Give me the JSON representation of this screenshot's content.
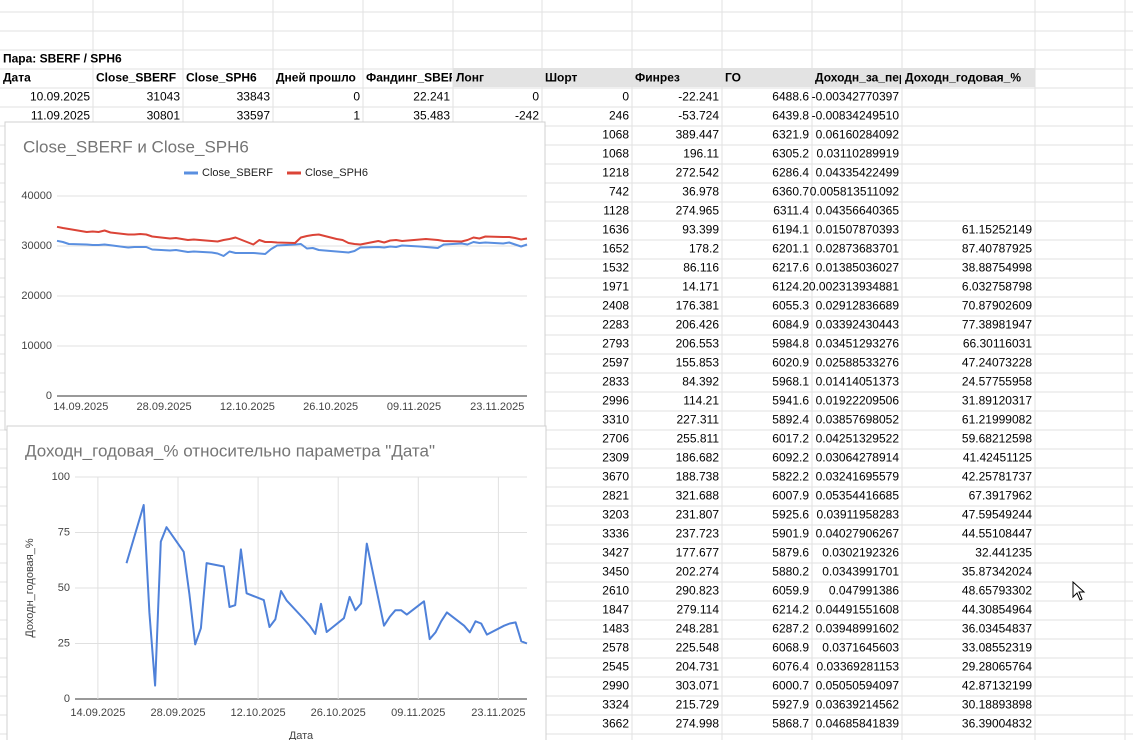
{
  "sheet": {
    "title": "Пара: SBERF / SPH6",
    "headers": [
      "Дата",
      "Close_SBERF",
      "Close_SPH6",
      "Дней прошло",
      "Фандинг_SBERF",
      "Лонг",
      "Шорт",
      "Финрез",
      "ГО",
      "Доходн_за_период",
      "Доходн_годовая_%"
    ],
    "rows": [
      [
        "10.09.2025",
        "31043",
        "33843",
        "0",
        "22.241",
        "0",
        "0",
        "-22.241",
        "6488.6",
        "-0.00342770397",
        null
      ],
      [
        "11.09.2025",
        "30801",
        "33597",
        "1",
        "35.483",
        "-242",
        "246",
        "-53.724",
        "6439.8",
        "-0.00834249510",
        null
      ],
      [
        null,
        null,
        null,
        null,
        null,
        null,
        "1068",
        "389.447",
        "6321.9",
        "0.06160284092",
        null
      ],
      [
        null,
        null,
        null,
        null,
        null,
        null,
        "1068",
        "196.11",
        "6305.2",
        "0.03110289919",
        null
      ],
      [
        null,
        null,
        null,
        null,
        null,
        null,
        "1218",
        "272.542",
        "6286.4",
        "0.04335422499",
        null
      ],
      [
        null,
        null,
        null,
        null,
        null,
        null,
        "742",
        "36.978",
        "6360.7",
        "0.005813511092",
        null
      ],
      [
        null,
        null,
        null,
        null,
        null,
        null,
        "1128",
        "274.965",
        "6311.4",
        "0.04356640365",
        null
      ],
      [
        null,
        null,
        null,
        null,
        null,
        null,
        "1636",
        "93.399",
        "6194.1",
        "0.01507870393",
        "61.15252149"
      ],
      [
        null,
        null,
        null,
        null,
        null,
        null,
        "1652",
        "178.2",
        "6201.1",
        "0.02873683701",
        "87.40787925"
      ],
      [
        null,
        null,
        null,
        null,
        null,
        null,
        "1532",
        "86.116",
        "6217.6",
        "0.01385036027",
        "38.88754998"
      ],
      [
        null,
        null,
        null,
        null,
        null,
        null,
        "1971",
        "14.171",
        "6124.2",
        "0.002313934881",
        "6.032758798"
      ],
      [
        null,
        null,
        null,
        null,
        null,
        null,
        "2408",
        "176.381",
        "6055.3",
        "0.02912836689",
        "70.87902609"
      ],
      [
        null,
        null,
        null,
        null,
        null,
        null,
        "2283",
        "206.426",
        "6084.9",
        "0.03392430443",
        "77.38981947"
      ],
      [
        null,
        null,
        null,
        null,
        null,
        null,
        "2793",
        "206.553",
        "5984.8",
        "0.03451293276",
        "66.30116031"
      ],
      [
        null,
        null,
        null,
        null,
        null,
        null,
        "2597",
        "155.853",
        "6020.9",
        "0.02588533276",
        "47.24073228"
      ],
      [
        null,
        null,
        null,
        null,
        null,
        null,
        "2833",
        "84.392",
        "5968.1",
        "0.01414051373",
        "24.57755958"
      ],
      [
        null,
        null,
        null,
        null,
        null,
        null,
        "2996",
        "114.21",
        "5941.6",
        "0.01922209506",
        "31.89120317"
      ],
      [
        null,
        null,
        null,
        null,
        null,
        null,
        "3310",
        "227.311",
        "5892.4",
        "0.03857698052",
        "61.21999082"
      ],
      [
        null,
        null,
        null,
        null,
        null,
        null,
        "2706",
        "255.811",
        "6017.2",
        "0.04251329522",
        "59.68212598"
      ],
      [
        null,
        null,
        null,
        null,
        null,
        null,
        "2309",
        "186.682",
        "6092.2",
        "0.03064278914",
        "41.42451125"
      ],
      [
        null,
        null,
        null,
        null,
        null,
        null,
        "3670",
        "188.738",
        "5822.2",
        "0.03241695579",
        "42.25781737"
      ],
      [
        null,
        null,
        null,
        null,
        null,
        null,
        "2821",
        "321.688",
        "6007.9",
        "0.05354416685",
        "67.3917962"
      ],
      [
        null,
        null,
        null,
        null,
        null,
        null,
        "3203",
        "231.807",
        "5925.6",
        "0.03911958283",
        "47.59549244"
      ],
      [
        null,
        null,
        null,
        null,
        null,
        null,
        "3336",
        "237.723",
        "5901.9",
        "0.04027906267",
        "44.55108447"
      ],
      [
        null,
        null,
        null,
        null,
        null,
        null,
        "3427",
        "177.677",
        "5879.6",
        "0.0302192326",
        "32.441235"
      ],
      [
        null,
        null,
        null,
        null,
        null,
        null,
        "3450",
        "202.274",
        "5880.2",
        "0.0343991701",
        "35.87342024"
      ],
      [
        null,
        null,
        null,
        null,
        null,
        null,
        "2610",
        "290.823",
        "6059.9",
        "0.047991386",
        "48.65793302"
      ],
      [
        null,
        null,
        null,
        null,
        null,
        null,
        "1847",
        "279.114",
        "6214.2",
        "0.04491551608",
        "44.30854964"
      ],
      [
        null,
        null,
        null,
        null,
        null,
        null,
        "1483",
        "248.281",
        "6287.2",
        "0.03948991602",
        "36.03454837"
      ],
      [
        null,
        null,
        null,
        null,
        null,
        null,
        "2578",
        "225.548",
        "6068.9",
        "0.0371645603",
        "33.08552319"
      ],
      [
        null,
        null,
        null,
        null,
        null,
        null,
        "2545",
        "204.731",
        "6076.4",
        "0.03369281153",
        "29.28065764"
      ],
      [
        null,
        null,
        null,
        null,
        null,
        null,
        "2990",
        "303.071",
        "6000.7",
        "0.05050594097",
        "42.87132199"
      ],
      [
        null,
        null,
        null,
        null,
        null,
        null,
        "3324",
        "215.729",
        "5927.9",
        "0.03639214562",
        "30.18893898"
      ],
      [
        null,
        null,
        null,
        null,
        null,
        null,
        "3662",
        "274.998",
        "5868.7",
        "0.04685841839",
        "36.39004832"
      ]
    ]
  },
  "chart_data": [
    {
      "type": "line",
      "title": "Close_SBERF и Close_SPH6",
      "x": [
        "10.09.2025",
        "11.09.2025",
        "12.09.2025",
        "15.09.2025",
        "16.09.2025",
        "17.09.2025",
        "18.09.2025",
        "19.09.2025",
        "22.09.2025",
        "23.09.2025",
        "24.09.2025",
        "25.09.2025",
        "26.09.2025",
        "29.09.2025",
        "30.09.2025",
        "01.10.2025",
        "02.10.2025",
        "03.10.2025",
        "06.10.2025",
        "07.10.2025",
        "08.10.2025",
        "09.10.2025",
        "10.10.2025",
        "13.10.2025",
        "14.10.2025",
        "15.10.2025",
        "16.10.2025",
        "17.10.2025",
        "20.10.2025",
        "21.10.2025",
        "22.10.2025",
        "23.10.2025",
        "24.10.2025",
        "27.10.2025",
        "28.10.2025",
        "29.10.2025",
        "30.10.2025",
        "31.10.2025",
        "03.11.2025",
        "04.11.2025",
        "05.11.2025",
        "06.11.2025",
        "07.11.2025",
        "10.11.2025",
        "11.11.2025",
        "12.11.2025",
        "13.11.2025",
        "14.11.2025",
        "17.11.2025",
        "18.11.2025",
        "19.11.2025",
        "20.11.2025",
        "21.11.2025",
        "24.11.2025",
        "25.11.2025",
        "26.11.2025",
        "27.11.2025",
        "28.11.2025"
      ],
      "series": [
        {
          "name": "Close_SBERF",
          "color": "#5a8fe0",
          "values": [
            31043,
            30801,
            30400,
            30300,
            30200,
            30200,
            30300,
            30150,
            29700,
            29800,
            29800,
            29800,
            29300,
            29100,
            29200,
            29000,
            28800,
            28900,
            28700,
            28500,
            28000,
            28900,
            28600,
            28600,
            28500,
            28400,
            29400,
            30100,
            30300,
            30400,
            29500,
            29600,
            29200,
            28900,
            28800,
            28700,
            29000,
            29700,
            29800,
            29700,
            29900,
            29800,
            30100,
            29900,
            29800,
            29700,
            29600,
            30300,
            30500,
            30300,
            30800,
            30600,
            30700,
            30500,
            30700,
            30300,
            29900,
            30300
          ]
        },
        {
          "name": "Close_SPH6",
          "color": "#db4437",
          "values": [
            33843,
            33597,
            33400,
            32800,
            32900,
            32800,
            33100,
            32700,
            32300,
            32300,
            32400,
            32300,
            31900,
            31500,
            31600,
            31400,
            31200,
            31300,
            31000,
            30900,
            31200,
            31400,
            31700,
            30300,
            31200,
            30800,
            30800,
            30700,
            30600,
            31700,
            32000,
            32200,
            32300,
            31400,
            31200,
            30600,
            30400,
            30300,
            31000,
            30700,
            31100,
            31200,
            31000,
            31300,
            31400,
            31300,
            31200,
            31000,
            30900,
            31200,
            31700,
            31500,
            31900,
            31800,
            31800,
            31600,
            31300,
            31500
          ]
        }
      ],
      "xlim": [
        "10.09.2025",
        "28.11.2025"
      ],
      "xticks": [
        "14.09.2025",
        "28.09.2025",
        "12.10.2025",
        "26.10.2025",
        "09.11.2025",
        "23.11.2025"
      ],
      "ylim": [
        0,
        40000
      ],
      "yticks": [
        0,
        10000,
        20000,
        30000,
        40000
      ],
      "grid": "y",
      "legend": "top"
    },
    {
      "type": "line",
      "title": "Доходн_годовая_% относительно параметра \"Дата\"",
      "x_label": "Дата",
      "y_label": "Доходн_годовая_%",
      "x": [
        "19.09.2025",
        "22.09.2025",
        "23.09.2025",
        "24.09.2025",
        "25.09.2025",
        "26.09.2025",
        "29.09.2025",
        "30.09.2025",
        "01.10.2025",
        "02.10.2025",
        "03.10.2025",
        "06.10.2025",
        "07.10.2025",
        "08.10.2025",
        "09.10.2025",
        "10.10.2025",
        "13.10.2025",
        "14.10.2025",
        "15.10.2025",
        "16.10.2025",
        "17.10.2025",
        "20.10.2025",
        "21.10.2025",
        "22.10.2025",
        "23.10.2025",
        "24.10.2025",
        "27.10.2025",
        "28.10.2025",
        "29.10.2025",
        "30.10.2025",
        "31.10.2025",
        "03.11.2025",
        "04.11.2025",
        "05.11.2025",
        "06.11.2025",
        "07.11.2025",
        "10.11.2025",
        "11.11.2025",
        "12.11.2025",
        "13.11.2025",
        "14.11.2025",
        "17.11.2025",
        "18.11.2025",
        "19.11.2025",
        "20.11.2025",
        "21.11.2025",
        "24.11.2025",
        "25.11.2025",
        "26.11.2025",
        "27.11.2025",
        "28.11.2025"
      ],
      "series": [
        {
          "name": "Доходн_годовая_%",
          "color": "#4f81d9",
          "values": [
            61.15252149,
            87.40787925,
            38.88754998,
            6.032758798,
            70.87902609,
            77.38981947,
            66.30116031,
            47.24073228,
            24.57755958,
            31.89120317,
            61.21999082,
            59.68212598,
            41.42451125,
            42.25781737,
            67.3917962,
            47.59549244,
            44.55108447,
            32.441235,
            35.87342024,
            48.65793302,
            44.30854964,
            36.03454837,
            33.08552319,
            29.28065764,
            42.87132199,
            30.18893898,
            36.39004832,
            46,
            40,
            43,
            70,
            33,
            37,
            40,
            40,
            38,
            44,
            27,
            30,
            35,
            39,
            33,
            30,
            35,
            34,
            29,
            33,
            34,
            34.5,
            26,
            25
          ]
        }
      ],
      "xlim": [
        "10.09.2025",
        "28.11.2025"
      ],
      "xticks": [
        "14.09.2025",
        "28.09.2025",
        "12.10.2025",
        "26.10.2025",
        "09.11.2025",
        "23.11.2025"
      ],
      "ylim": [
        0,
        100
      ],
      "yticks": [
        0,
        25,
        50,
        75,
        100
      ],
      "grid": "xy"
    }
  ]
}
